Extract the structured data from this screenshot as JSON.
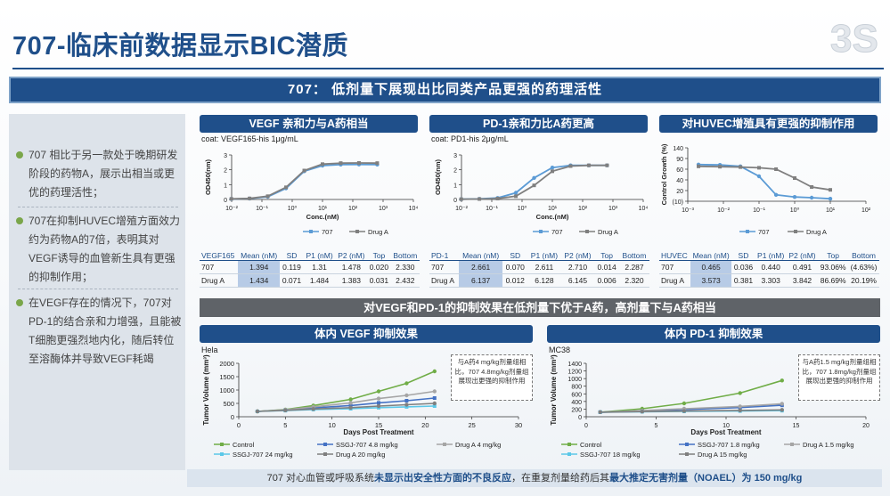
{
  "title": "707-临床前数据显示BIC潜质",
  "banner": "707： 低剂量下展现出比同类产品更强的药理活性",
  "left_panel": {
    "items": [
      "707 相比于另一款处于晚期研发阶段的药物A，展示出相当或更优的药理活性；",
      "707在抑制HUVEC增殖方面效力约为药物A的7倍，表明其对VEGF诱导的血管新生具有更强的抑制作用；",
      "在VEGF存在的情况下，707对PD-1的结合亲和力增强，且能被T细胞更强烈地内化，随后转位至溶酶体并导致VEGF耗竭"
    ]
  },
  "panels": {
    "vegf": {
      "header": "VEGF 亲和力与A药相当",
      "coat": "coat: VEGF165-his 1μg/mL"
    },
    "pd1": {
      "header": "PD-1亲和力比A药更高",
      "coat": "coat: PD1-his 2μg/mL"
    },
    "huvec": {
      "header": "对HUVEC增殖具有更强的抑制作用"
    }
  },
  "mid_banner": "对VEGF和PD-1的抑制效果在低剂量下优于A药，高剂量下与A药相当",
  "invivo": {
    "vegf": {
      "header": "体内 VEGF 抑制效果",
      "model": "Hela",
      "note": "与A药4 mg/kg剂量组相比，707 4.8mg/kg剂量组展现出更强的抑制作用"
    },
    "pd1": {
      "header": "体内 PD-1 抑制效果",
      "model": "MC38",
      "note": "与A药1.5 mg/kg剂量组相比，707 1.8mg/kg剂量组展现出更强的抑制作用"
    }
  },
  "tables": {
    "vegf": {
      "headers": [
        "VEGF165",
        "Mean (nM)",
        "SD",
        "P1 (nM)",
        "P2 (nM)",
        "Top",
        "Bottom"
      ],
      "rows": [
        [
          "707",
          "1.394",
          "0.119",
          "1.31",
          "1.478",
          "0.020",
          "2.330"
        ],
        [
          "Drug A",
          "1.434",
          "0.071",
          "1.484",
          "1.383",
          "0.031",
          "2.432"
        ]
      ]
    },
    "pd1": {
      "headers": [
        "PD-1",
        "Mean (nM)",
        "SD",
        "P1 (nM)",
        "P2 (nM)",
        "Top",
        "Bottom"
      ],
      "rows": [
        [
          "707",
          "2.661",
          "0.070",
          "2.611",
          "2.710",
          "0.014",
          "2.287"
        ],
        [
          "Drug A",
          "6.137",
          "0.012",
          "6.128",
          "6.145",
          "0.006",
          "2.320"
        ]
      ]
    },
    "huvec": {
      "headers": [
        "HUVEC",
        "Mean (nM)",
        "SD",
        "P1 (nM)",
        "P2 (nM)",
        "Top",
        "Bottom"
      ],
      "rows": [
        [
          "707",
          "0.465",
          "0.036",
          "0.440",
          "0.491",
          "93.06%",
          "(4.63%)"
        ],
        [
          "Drug A",
          "3.573",
          "0.381",
          "3.303",
          "3.842",
          "86.69%",
          "20.19%"
        ]
      ]
    }
  },
  "footer": {
    "pre": "707 对心血管或呼吸系统",
    "b1": "未显示出安全性方面的不良反应",
    "mid": "，在重复剂量给药后其",
    "b2": "最大推定无害剂量（NOAEL）为 150 mg/kg"
  },
  "colors": {
    "navy": "#1f4f8a",
    "s707": "#5b9bd5",
    "drugA": "#7f7f7f",
    "control": "#70ad47",
    "hi707": "#4472c4",
    "lo707": "#5bc8e8",
    "drugA_hi": "#a5a5a5"
  },
  "chart_data": [
    {
      "type": "line",
      "name": "vegf_binding",
      "xlabel": "Conc.(nM)",
      "ylabel": "OD450(nm)",
      "x_scale": "log",
      "xlim": [
        0.01,
        10000
      ],
      "ylim": [
        0,
        3
      ],
      "x_ticks": [
        "10⁻²",
        "10⁻¹",
        "10⁰",
        "10¹",
        "10²",
        "10³",
        "10⁴"
      ],
      "y_ticks": [
        "0",
        "1",
        "2",
        "3"
      ],
      "x": [
        0.0098,
        0.039,
        0.156,
        0.625,
        2.5,
        10,
        40,
        160,
        640
      ],
      "series": [
        {
          "name": "707",
          "values": [
            0.03,
            0.06,
            0.18,
            0.75,
            1.9,
            2.28,
            2.35,
            2.36,
            2.35
          ]
        },
        {
          "name": "Drug A",
          "values": [
            0.04,
            0.07,
            0.22,
            0.82,
            1.95,
            2.38,
            2.45,
            2.46,
            2.45
          ]
        }
      ]
    },
    {
      "type": "line",
      "name": "pd1_binding",
      "xlabel": "Conc.(nM)",
      "ylabel": "OD450(nm)",
      "x_scale": "log",
      "xlim": [
        0.01,
        10000
      ],
      "ylim": [
        0,
        3
      ],
      "x_ticks": [
        "10⁻²",
        "10⁻¹",
        "10⁰",
        "10¹",
        "10²",
        "10³",
        "10⁴"
      ],
      "y_ticks": [
        "0",
        "1",
        "2",
        "3"
      ],
      "x": [
        0.0098,
        0.039,
        0.156,
        0.625,
        2.5,
        10,
        40,
        160,
        640
      ],
      "series": [
        {
          "name": "707",
          "values": [
            0.02,
            0.04,
            0.1,
            0.45,
            1.45,
            2.15,
            2.3,
            2.3,
            2.3
          ]
        },
        {
          "name": "Drug A",
          "values": [
            0.02,
            0.03,
            0.06,
            0.22,
            0.95,
            1.9,
            2.25,
            2.3,
            2.3
          ]
        }
      ]
    },
    {
      "type": "line",
      "name": "huvec_growth",
      "ylabel": "Control Growth (%)",
      "x_scale": "log",
      "xlim": [
        0.001,
        100
      ],
      "ylim": [
        -10,
        140
      ],
      "x_ticks": [
        "10⁻³",
        "10⁻²",
        "10⁻¹",
        "10⁰",
        "10¹",
        "10²"
      ],
      "y_ticks": [
        "(10)",
        "20",
        "40",
        "60",
        "90",
        "140"
      ],
      "x": [
        0.002,
        0.008,
        0.03,
        0.1,
        0.3,
        1,
        3,
        10
      ],
      "series": [
        {
          "name": "707",
          "values": [
            93,
            92,
            88,
            60,
            8,
            2,
            0,
            -3
          ]
        },
        {
          "name": "Drug A",
          "values": [
            88,
            87,
            86,
            84,
            80,
            55,
            30,
            22
          ]
        }
      ]
    },
    {
      "type": "line",
      "name": "tumor_vegf_hela",
      "xlabel": "Days Post Treatment",
      "ylabel": "Tumor Volume (mm³)",
      "xlim": [
        0,
        30
      ],
      "ylim": [
        0,
        2000
      ],
      "x_ticks": [
        "0",
        "5",
        "10",
        "15",
        "20",
        "25",
        "30"
      ],
      "y_ticks": [
        "0",
        "500",
        "1000",
        "1500",
        "2000"
      ],
      "x": [
        2,
        5,
        8,
        12,
        15,
        18,
        21
      ],
      "series": [
        {
          "name": "Control",
          "values": [
            200,
            270,
            420,
            650,
            950,
            1250,
            1700
          ]
        },
        {
          "name": "SSGJ-707 4.8 mg/kg",
          "values": [
            200,
            250,
            330,
            420,
            520,
            600,
            700
          ]
        },
        {
          "name": "Drug A 4 mg/kg",
          "values": [
            200,
            260,
            370,
            520,
            680,
            800,
            950
          ]
        },
        {
          "name": "SSGJ-707 24 mg/kg",
          "values": [
            200,
            230,
            270,
            300,
            340,
            370,
            400
          ]
        },
        {
          "name": "Drug A 20 mg/kg",
          "values": [
            200,
            240,
            290,
            340,
            400,
            450,
            500
          ]
        }
      ]
    },
    {
      "type": "line",
      "name": "tumor_pd1_mc38",
      "xlabel": "Days Post Treatment",
      "ylabel": "Tumor Volume (mm³)",
      "xlim": [
        0,
        20
      ],
      "ylim": [
        0,
        1400
      ],
      "x_ticks": [
        "0",
        "5",
        "10",
        "15",
        "20"
      ],
      "y_ticks": [
        "0",
        "200",
        "400",
        "600",
        "800",
        "1000",
        "1200",
        "1400"
      ],
      "x": [
        1,
        4,
        7,
        11,
        14
      ],
      "series": [
        {
          "name": "Control",
          "values": [
            120,
            210,
            350,
            620,
            950
          ]
        },
        {
          "name": "SSGJ-707 1.8 mg/kg",
          "values": [
            120,
            150,
            190,
            240,
            300
          ]
        },
        {
          "name": "Drug A 1.5 mg/kg",
          "values": [
            120,
            160,
            210,
            270,
            340
          ]
        },
        {
          "name": "SSGJ-707 18 mg/kg",
          "values": [
            120,
            130,
            140,
            150,
            160
          ]
        },
        {
          "name": "Drug A 15 mg/kg",
          "values": [
            120,
            135,
            150,
            165,
            180
          ]
        }
      ]
    }
  ]
}
